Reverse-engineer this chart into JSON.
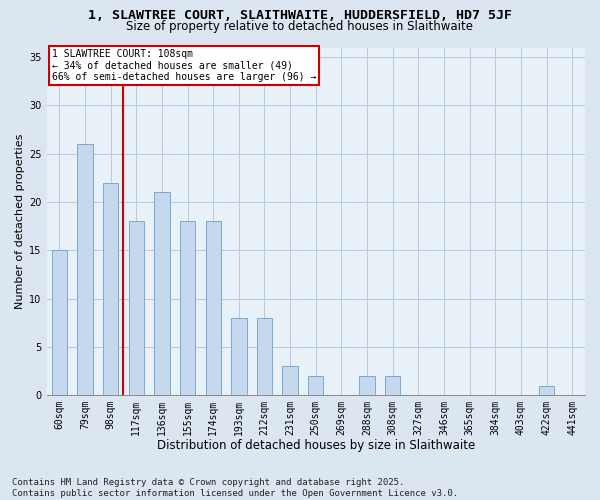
{
  "title_line1": "1, SLAWTREE COURT, SLAITHWAITE, HUDDERSFIELD, HD7 5JF",
  "title_line2": "Size of property relative to detached houses in Slaithwaite",
  "xlabel": "Distribution of detached houses by size in Slaithwaite",
  "ylabel": "Number of detached properties",
  "categories": [
    "60sqm",
    "79sqm",
    "98sqm",
    "117sqm",
    "136sqm",
    "155sqm",
    "174sqm",
    "193sqm",
    "212sqm",
    "231sqm",
    "250sqm",
    "269sqm",
    "288sqm",
    "308sqm",
    "327sqm",
    "346sqm",
    "365sqm",
    "384sqm",
    "403sqm",
    "422sqm",
    "441sqm"
  ],
  "values": [
    15,
    26,
    22,
    18,
    21,
    18,
    18,
    8,
    8,
    3,
    2,
    0,
    2,
    2,
    0,
    0,
    0,
    0,
    0,
    1,
    0
  ],
  "bar_color": "#c5d8ee",
  "bar_edge_color": "#7aaad0",
  "bar_linewidth": 0.7,
  "vline_x_index": 2,
  "vline_color": "#cc0000",
  "ylim": [
    0,
    36
  ],
  "yticks": [
    0,
    5,
    10,
    15,
    20,
    25,
    30,
    35
  ],
  "annotation_text": "1 SLAWTREE COURT: 108sqm\n← 34% of detached houses are smaller (49)\n66% of semi-detached houses are larger (96) →",
  "annotation_box_color": "#ffffff",
  "annotation_box_edge": "#cc0000",
  "bg_color": "#dce6f0",
  "plot_bg_color": "#e8f0f8",
  "grid_color": "#b8c8dc",
  "footer_text": "Contains HM Land Registry data © Crown copyright and database right 2025.\nContains public sector information licensed under the Open Government Licence v3.0.",
  "title_fontsize": 9.5,
  "subtitle_fontsize": 8.5,
  "tick_fontsize": 7,
  "xlabel_fontsize": 8.5,
  "ylabel_fontsize": 8,
  "footer_fontsize": 6.5,
  "bar_width": 0.6
}
